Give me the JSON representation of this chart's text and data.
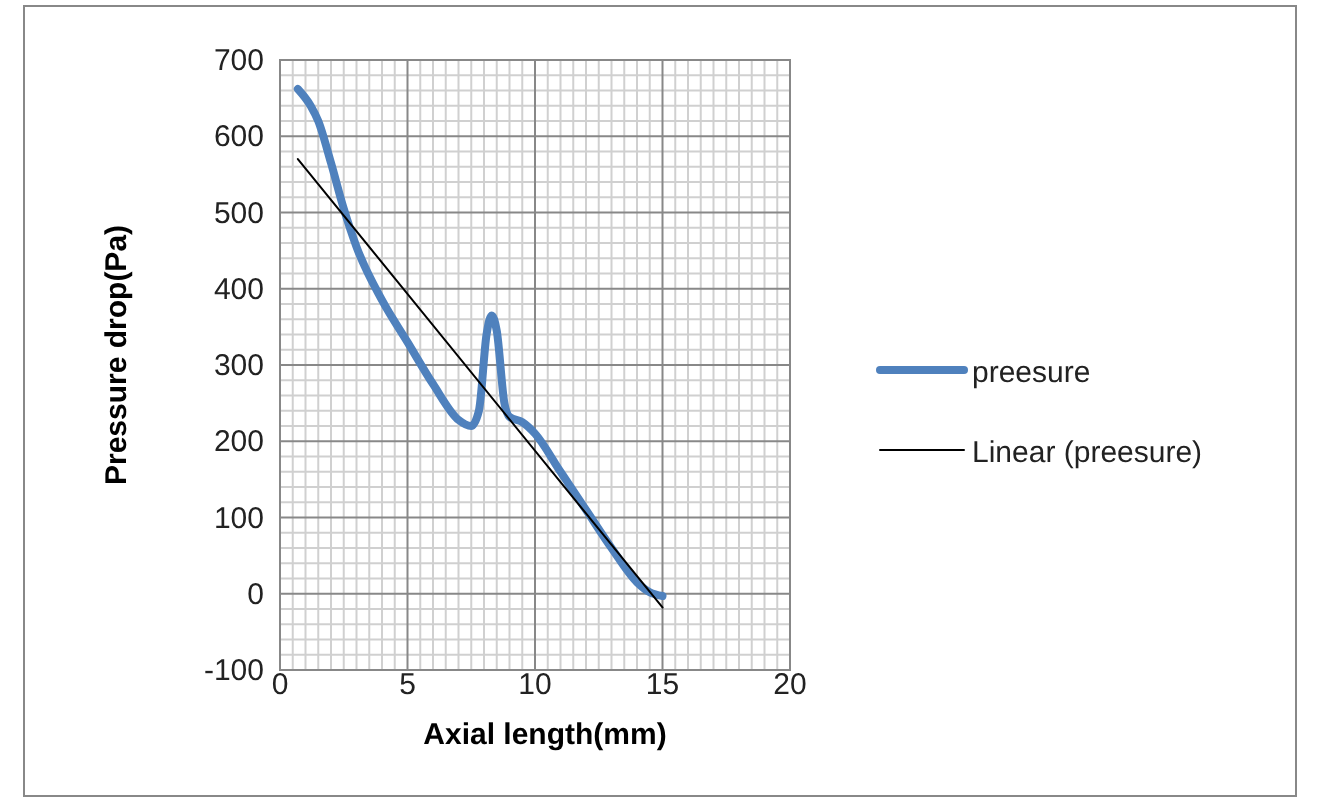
{
  "chart_data": {
    "type": "line",
    "xlabel": "Axial length(mm)",
    "ylabel": "Pressure drop(Pa)",
    "xlim": [
      0,
      20
    ],
    "xticks": [
      0,
      5,
      10,
      15,
      20
    ],
    "ylim": [
      -100,
      700
    ],
    "yticks": [
      -100,
      0,
      100,
      200,
      300,
      400,
      500,
      600,
      700
    ],
    "grid": true,
    "legend": "right",
    "series": [
      {
        "name": "preesure",
        "color": "#4f81bd",
        "x": [
          0.7,
          1.2,
          1.5,
          2,
          2.5,
          3,
          4,
          5,
          6,
          7,
          7.5,
          7.8,
          8.1,
          8.3,
          8.5,
          8.8,
          9,
          9.5,
          10,
          11,
          12,
          13,
          14,
          14.5,
          15
        ],
        "values": [
          662,
          640,
          620,
          565,
          505,
          455,
          385,
          330,
          275,
          228,
          220,
          240,
          340,
          365,
          345,
          250,
          232,
          225,
          210,
          160,
          110,
          60,
          15,
          2,
          -3
        ]
      },
      {
        "name": "Linear (preesure)",
        "color": "#000000",
        "x": [
          0.7,
          15
        ],
        "values": [
          570,
          -18
        ]
      }
    ]
  }
}
